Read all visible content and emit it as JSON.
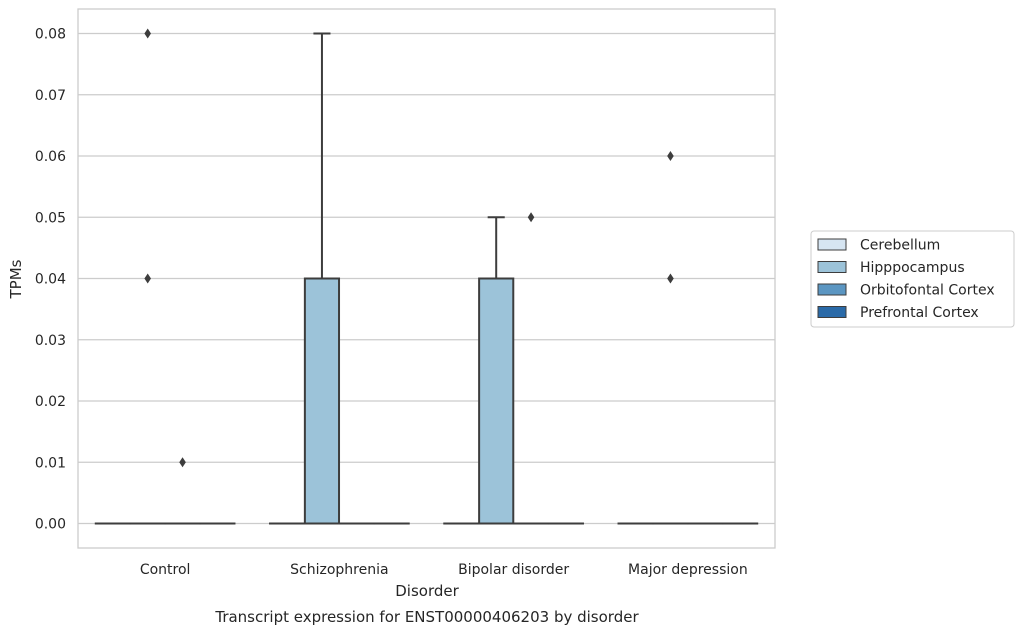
{
  "chart_data": {
    "type": "box",
    "title": "Transcript expression for ENST00000406203 by disorder",
    "xlabel": "Disorder",
    "ylabel": "TPMs",
    "categories": [
      "Control",
      "Schizophrenia",
      "Bipolar disorder",
      "Major depression"
    ],
    "y_ticks": [
      "0.00",
      "0.01",
      "0.02",
      "0.03",
      "0.04",
      "0.05",
      "0.06",
      "0.07",
      "0.08"
    ],
    "ylim": [
      -0.004,
      0.084
    ],
    "grid": "horizontal",
    "legend_placement": "right",
    "series": [
      {
        "name": "Cerebellum",
        "color": "#d6e5f2",
        "boxes": [
          {
            "q1": 0,
            "median": 0,
            "q3": 0,
            "whisker_low": 0,
            "whisker_high": 0,
            "outliers": []
          },
          {
            "q1": 0,
            "median": 0,
            "q3": 0,
            "whisker_low": 0,
            "whisker_high": 0,
            "outliers": []
          },
          {
            "q1": 0,
            "median": 0,
            "q3": 0,
            "whisker_low": 0,
            "whisker_high": 0,
            "outliers": []
          },
          {
            "q1": 0,
            "median": 0,
            "q3": 0,
            "whisker_low": 0,
            "whisker_high": 0,
            "outliers": []
          }
        ]
      },
      {
        "name": "Hipppocampus",
        "color": "#9cc3d9",
        "boxes": [
          {
            "q1": 0,
            "median": 0,
            "q3": 0,
            "whisker_low": 0,
            "whisker_high": 0,
            "outliers": [
              0.08,
              0.04
            ]
          },
          {
            "q1": 0,
            "median": 0,
            "q3": 0.04,
            "whisker_low": 0,
            "whisker_high": 0.08,
            "outliers": []
          },
          {
            "q1": 0,
            "median": 0,
            "q3": 0.04,
            "whisker_low": 0,
            "whisker_high": 0.05,
            "outliers": []
          },
          {
            "q1": 0,
            "median": 0,
            "q3": 0,
            "whisker_low": 0,
            "whisker_high": 0,
            "outliers": [
              0.06,
              0.04
            ]
          }
        ]
      },
      {
        "name": "Orbitofontal Cortex",
        "color": "#5b96c2",
        "boxes": [
          {
            "q1": 0,
            "median": 0,
            "q3": 0,
            "whisker_low": 0,
            "whisker_high": 0,
            "outliers": [
              0.01
            ]
          },
          {
            "q1": 0,
            "median": 0,
            "q3": 0,
            "whisker_low": 0,
            "whisker_high": 0,
            "outliers": []
          },
          {
            "q1": 0,
            "median": 0,
            "q3": 0,
            "whisker_low": 0,
            "whisker_high": 0,
            "outliers": [
              0.05
            ]
          },
          {
            "q1": 0,
            "median": 0,
            "q3": 0,
            "whisker_low": 0,
            "whisker_high": 0,
            "outliers": []
          }
        ]
      },
      {
        "name": "Prefrontal Cortex",
        "color": "#2a6aa8",
        "boxes": [
          {
            "q1": 0,
            "median": 0,
            "q3": 0,
            "whisker_low": 0,
            "whisker_high": 0,
            "outliers": []
          },
          {
            "q1": 0,
            "median": 0,
            "q3": 0,
            "whisker_low": 0,
            "whisker_high": 0,
            "outliers": []
          },
          {
            "q1": 0,
            "median": 0,
            "q3": 0,
            "whisker_low": 0,
            "whisker_high": 0,
            "outliers": []
          },
          {
            "q1": 0,
            "median": 0,
            "q3": 0,
            "whisker_low": 0,
            "whisker_high": 0,
            "outliers": []
          }
        ]
      }
    ]
  }
}
